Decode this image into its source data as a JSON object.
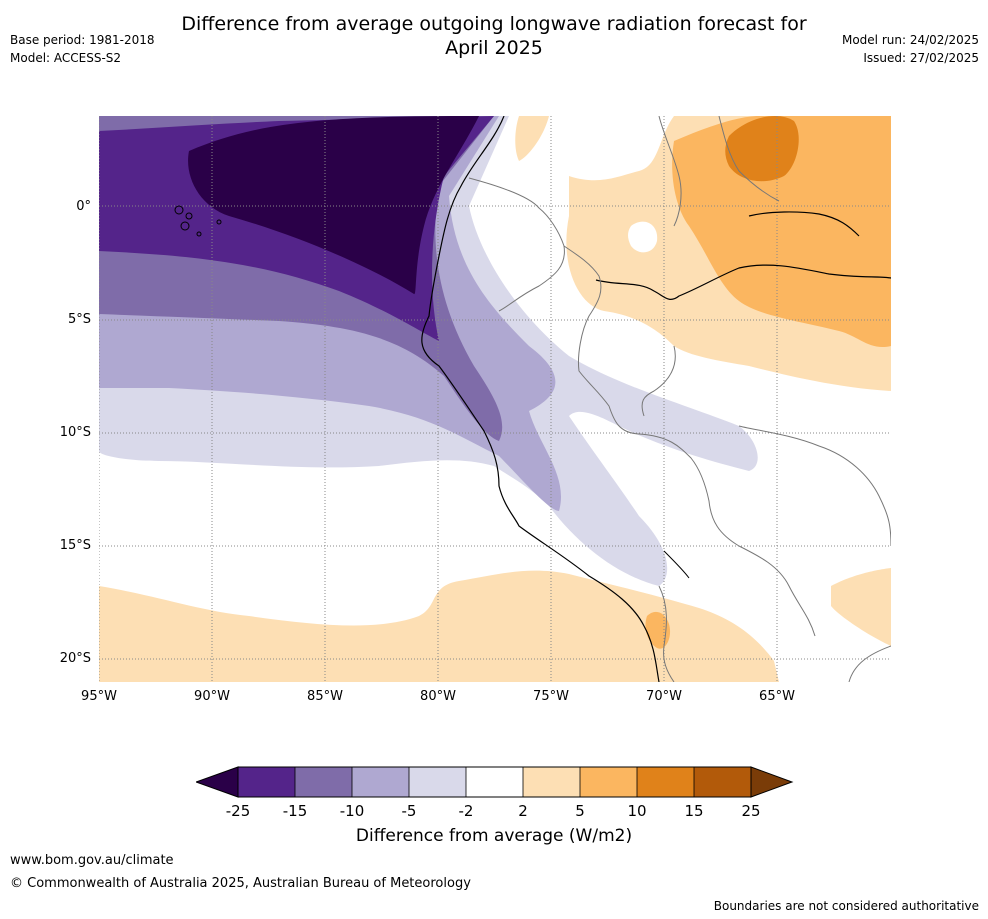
{
  "header": {
    "title_line1": "Difference from average outgoing longwave radiation forecast for",
    "title_line2": "April 2025",
    "base_period": "Base period: 1981-2018",
    "model": "Model: ACCESS-S2",
    "model_run": "Model run: 24/02/2025",
    "issued": "Issued: 27/02/2025"
  },
  "map": {
    "lat_labels": [
      "0°",
      "5°S",
      "10°S",
      "15°S",
      "20°S"
    ],
    "lon_labels": [
      "95°W",
      "90°W",
      "85°W",
      "80°W",
      "75°W",
      "70°W",
      "65°W"
    ],
    "colors": {
      "lt_m25": "#2a0048",
      "m25_m15": "#54248a",
      "m15_m10": "#7f6ca9",
      "m10_m5": "#afa8d1",
      "m5_m2": "#d9d9ea",
      "m2_2": "#ffffff",
      "p2_5": "#fddfb4",
      "p5_10": "#fbb660",
      "p10_15": "#e0821a",
      "p15_25": "#b25a0a",
      "gt_25": "#7a3c08"
    }
  },
  "colorbar": {
    "ticks": [
      "-25",
      "-15",
      "-10",
      "-5",
      "-2",
      "2",
      "5",
      "10",
      "15",
      "25"
    ],
    "label": "Difference from average (W/m2)"
  },
  "footer": {
    "url": "www.bom.gov.au/climate",
    "copyright": "© Commonwealth of Australia 2025, Australian Bureau of Meteorology",
    "disclaimer": "Boundaries are not considered authoritative"
  }
}
